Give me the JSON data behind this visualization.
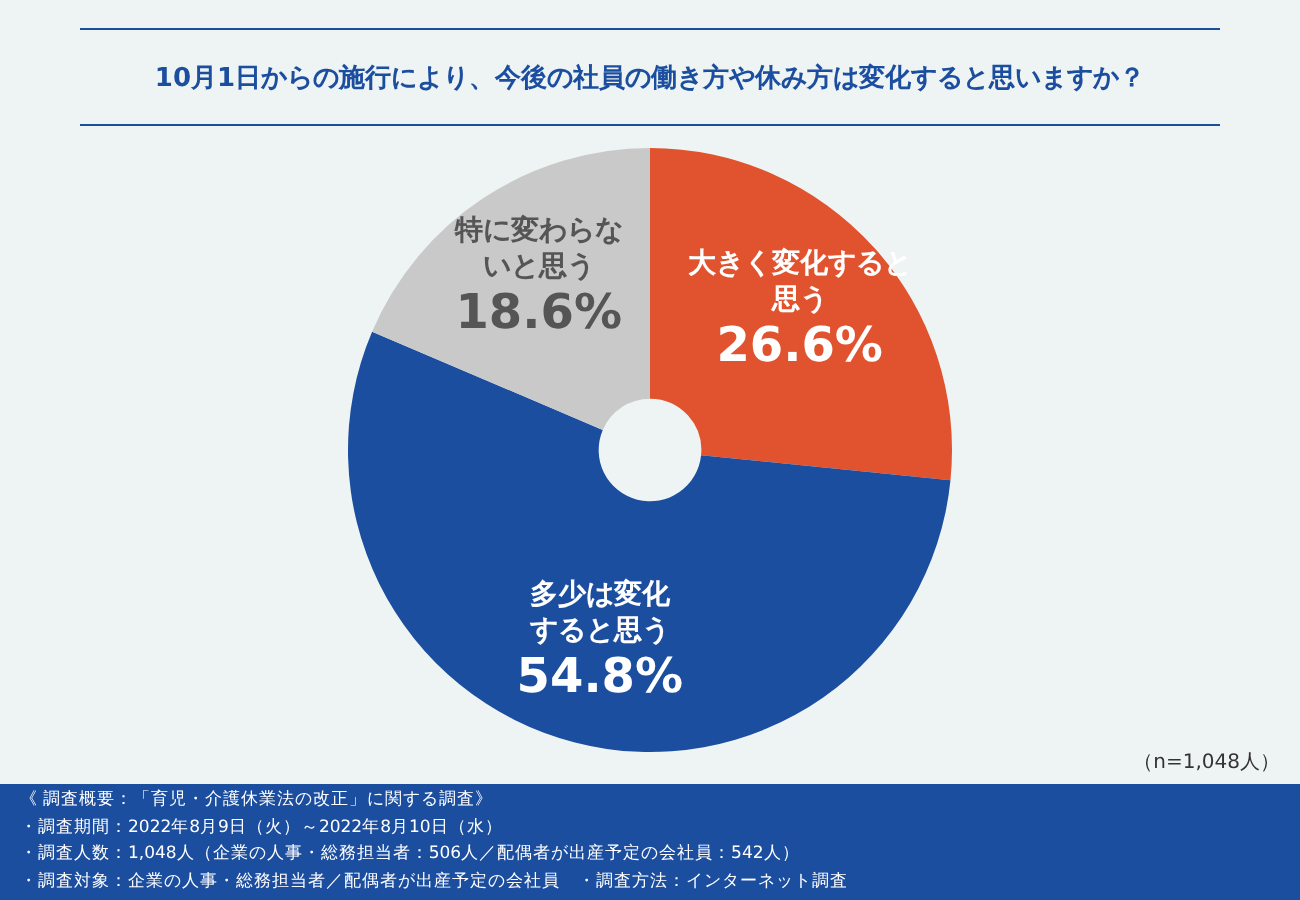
{
  "chart_data": {
    "type": "donut",
    "title": "10月1日からの施行により、今後の社員の働き方や休み方は変化すると思いますか？",
    "categories": [
      "大きく変化すると思う",
      "多少は変化すると思う",
      "特に変わらないと思う"
    ],
    "values": [
      26.6,
      54.8,
      18.6
    ],
    "value_labels": [
      "26.6%",
      "54.8%",
      "18.6%"
    ],
    "colors": [
      "#e0532e",
      "#1c4ea0",
      "#c9c9c9"
    ],
    "legend": false,
    "annotations": [
      "（n=1,048人）",
      "《 調査概要：「育児・介護休業法の改正」に関する調査》",
      "・調査期間：2022年8月9日（火）～2022年8月10日（水）",
      "・調査人数：1,048人（企業の人事・総務担当者：506人／配偶者が出産予定の会社員：542人）",
      "・調査対象：企業の人事・総務担当者／配偶者が出産予定の会社員　・調査方法：インターネット調査"
    ]
  }
}
